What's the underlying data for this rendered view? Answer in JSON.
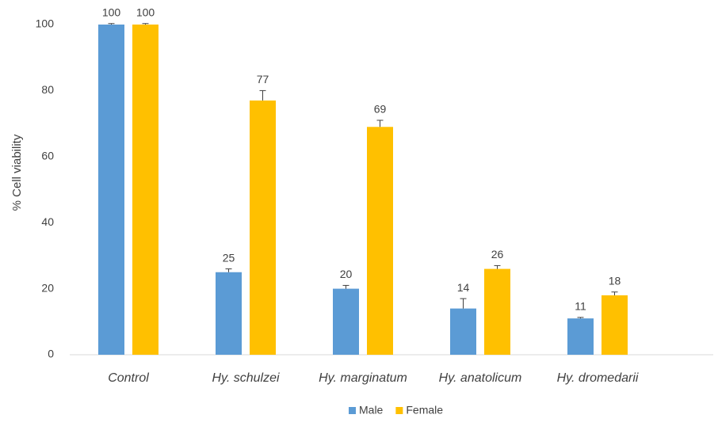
{
  "chart_data": {
    "type": "bar",
    "y_label": "% Cell viability",
    "categories": [
      "Control",
      "Hy. schulzei",
      "Hy. marginatum",
      "Hy. anatolicum",
      "Hy. dromedarii"
    ],
    "series": [
      {
        "name": "Male",
        "color": "#5b9bd5",
        "values": [
          100,
          25,
          20,
          14,
          11
        ],
        "error": [
          0.3,
          1,
          1,
          3,
          0.3
        ]
      },
      {
        "name": "Female",
        "color": "#ffc000",
        "values": [
          100,
          77,
          69,
          26,
          18
        ],
        "error": [
          0.3,
          3,
          2,
          1,
          1
        ]
      }
    ],
    "ylim": [
      0,
      100
    ],
    "yticks": [
      0,
      20,
      40,
      60,
      80,
      100
    ],
    "grid": false,
    "legend": "bottom"
  }
}
